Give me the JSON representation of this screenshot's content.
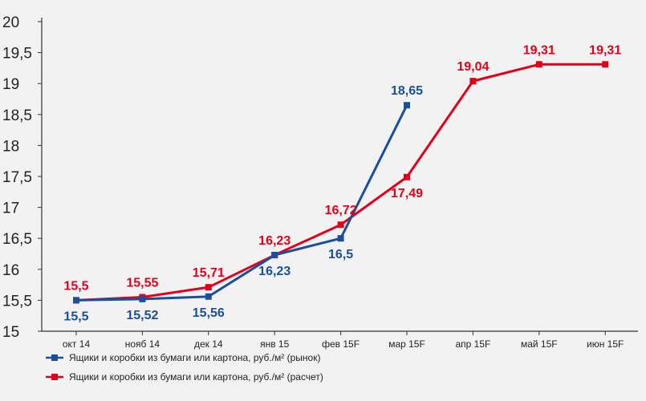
{
  "chart_data": {
    "type": "line",
    "categories": [
      "окт 14",
      "нояб 14",
      "дек 14",
      "янв 15",
      "фев 15F",
      "мар 15F",
      "апр 15F",
      "май 15F",
      "июн 15F"
    ],
    "yticks": [
      "15",
      "15,5",
      "16",
      "16,5",
      "17",
      "17,5",
      "18",
      "18,5",
      "19",
      "19,5",
      "20"
    ],
    "ylim": [
      15,
      20
    ],
    "grid": false,
    "legend_position": "bottom",
    "series": [
      {
        "name": "Ящики и коробки из бумаги или картона, руб./м² (рынок)",
        "color": "#1a4f9c",
        "values": [
          15.5,
          15.52,
          15.56,
          16.23,
          16.5,
          18.65,
          null,
          null,
          null
        ],
        "labels": [
          "15,5",
          "15,52",
          "15,56",
          "16,23",
          "16,5",
          "18,65",
          "",
          "",
          ""
        ]
      },
      {
        "name": "Ящики и коробки из бумаги или картона, руб./м² (расчет)",
        "color": "#e3001b",
        "values": [
          15.5,
          15.55,
          15.71,
          16.23,
          16.72,
          17.49,
          19.04,
          19.31,
          19.31
        ],
        "labels": [
          "15,5",
          "15,55",
          "15,71",
          "16,23",
          "16,72",
          "17,49",
          "19,04",
          "19,31",
          "19,31"
        ]
      }
    ]
  }
}
